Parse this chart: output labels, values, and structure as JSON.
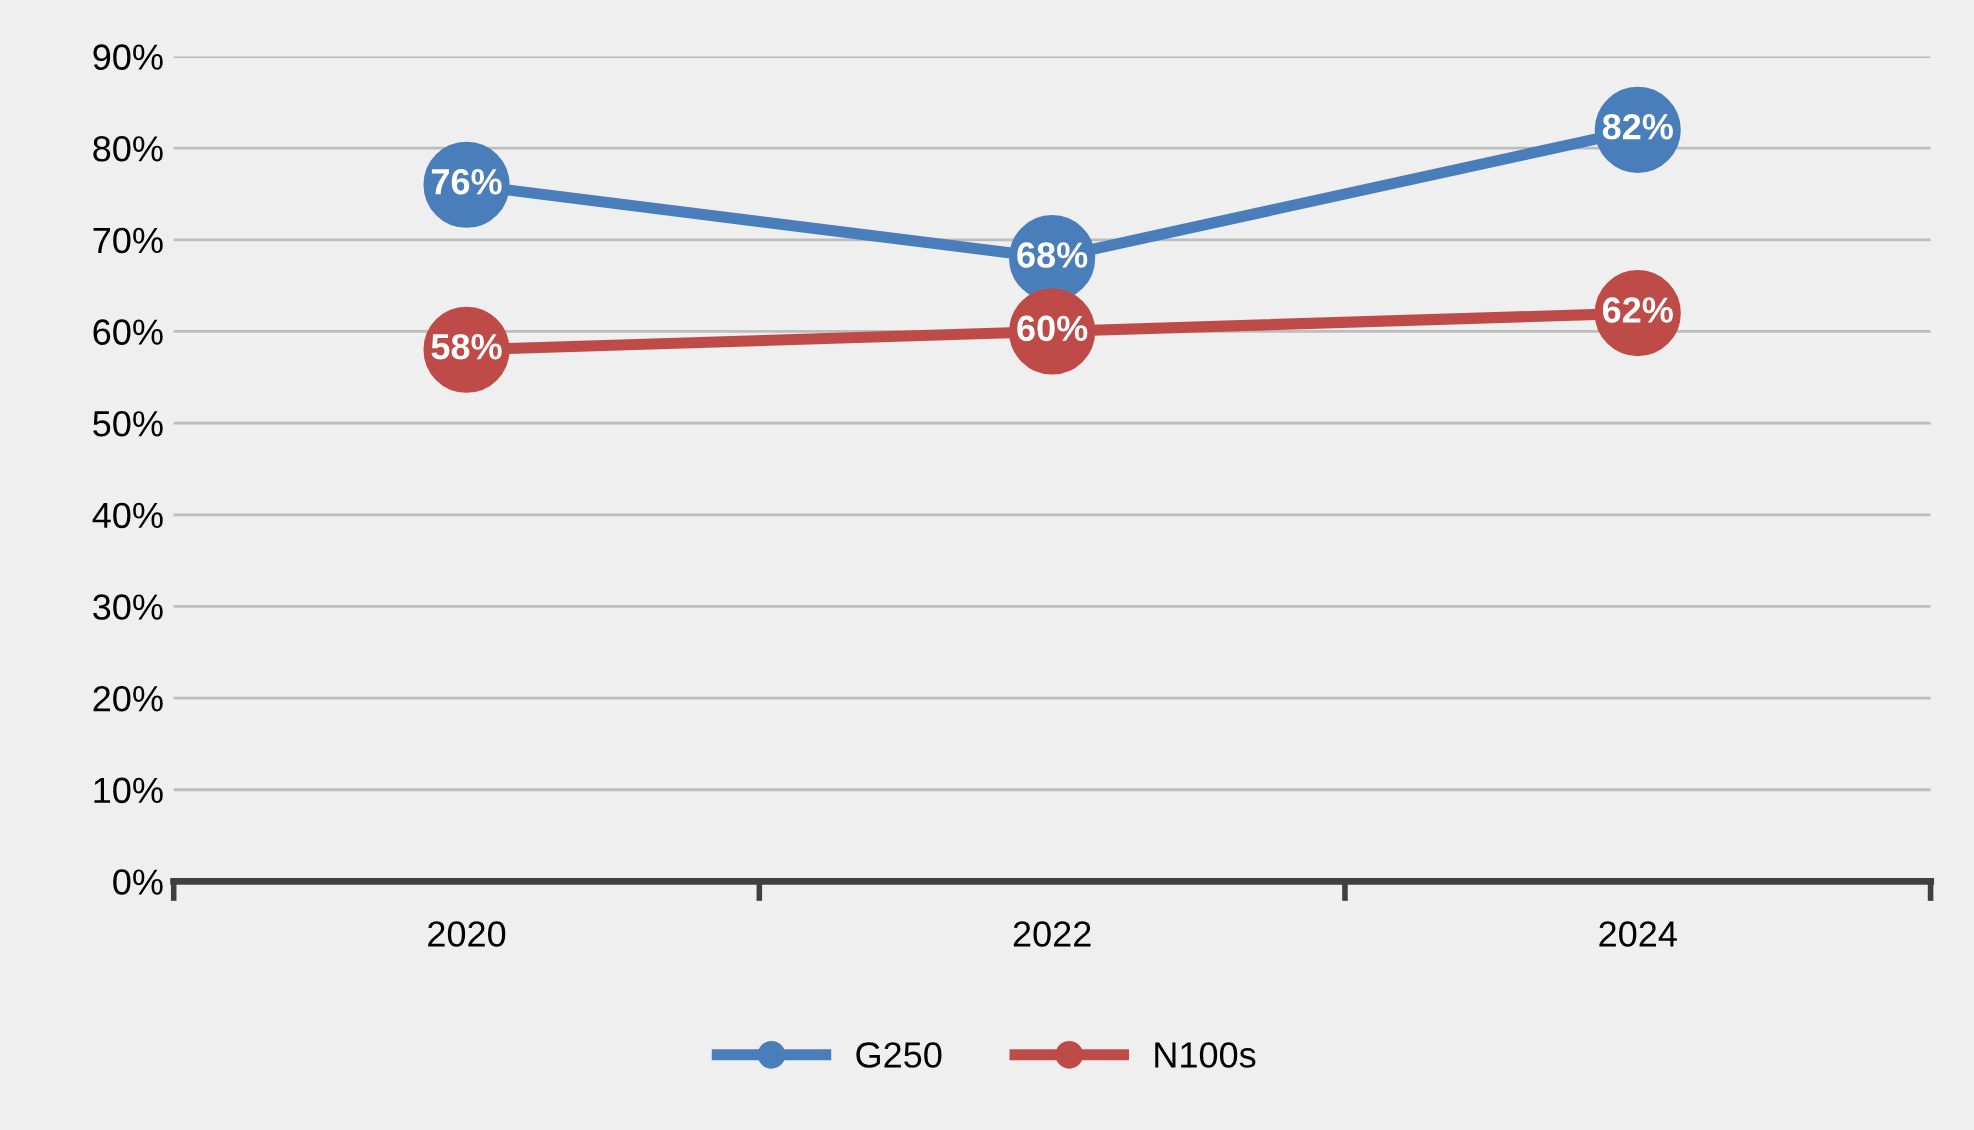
{
  "chart_data": {
    "type": "line",
    "categories": [
      "2020",
      "2022",
      "2024"
    ],
    "series": [
      {
        "name": "G250",
        "color": "#4a7ebb",
        "values": [
          76,
          68,
          82
        ],
        "value_labels": [
          "76%",
          "68%",
          "82%"
        ]
      },
      {
        "name": "N100s",
        "color": "#be4b48",
        "values": [
          58,
          60,
          62
        ],
        "value_labels": [
          "58%",
          "60%",
          "62%"
        ]
      }
    ],
    "ylim": [
      0,
      90
    ],
    "yticks": [
      {
        "value": 0,
        "label": "0%"
      },
      {
        "value": 10,
        "label": "10%"
      },
      {
        "value": 20,
        "label": "20%"
      },
      {
        "value": 30,
        "label": "30%"
      },
      {
        "value": 40,
        "label": "40%"
      },
      {
        "value": 50,
        "label": "50%"
      },
      {
        "value": 60,
        "label": "60%"
      },
      {
        "value": 70,
        "label": "70%"
      },
      {
        "value": 80,
        "label": "80%"
      },
      {
        "value": 90,
        "label": "90%"
      }
    ],
    "grid": "y",
    "legend": "bottom",
    "marker": "circle",
    "line_style": "solid"
  }
}
